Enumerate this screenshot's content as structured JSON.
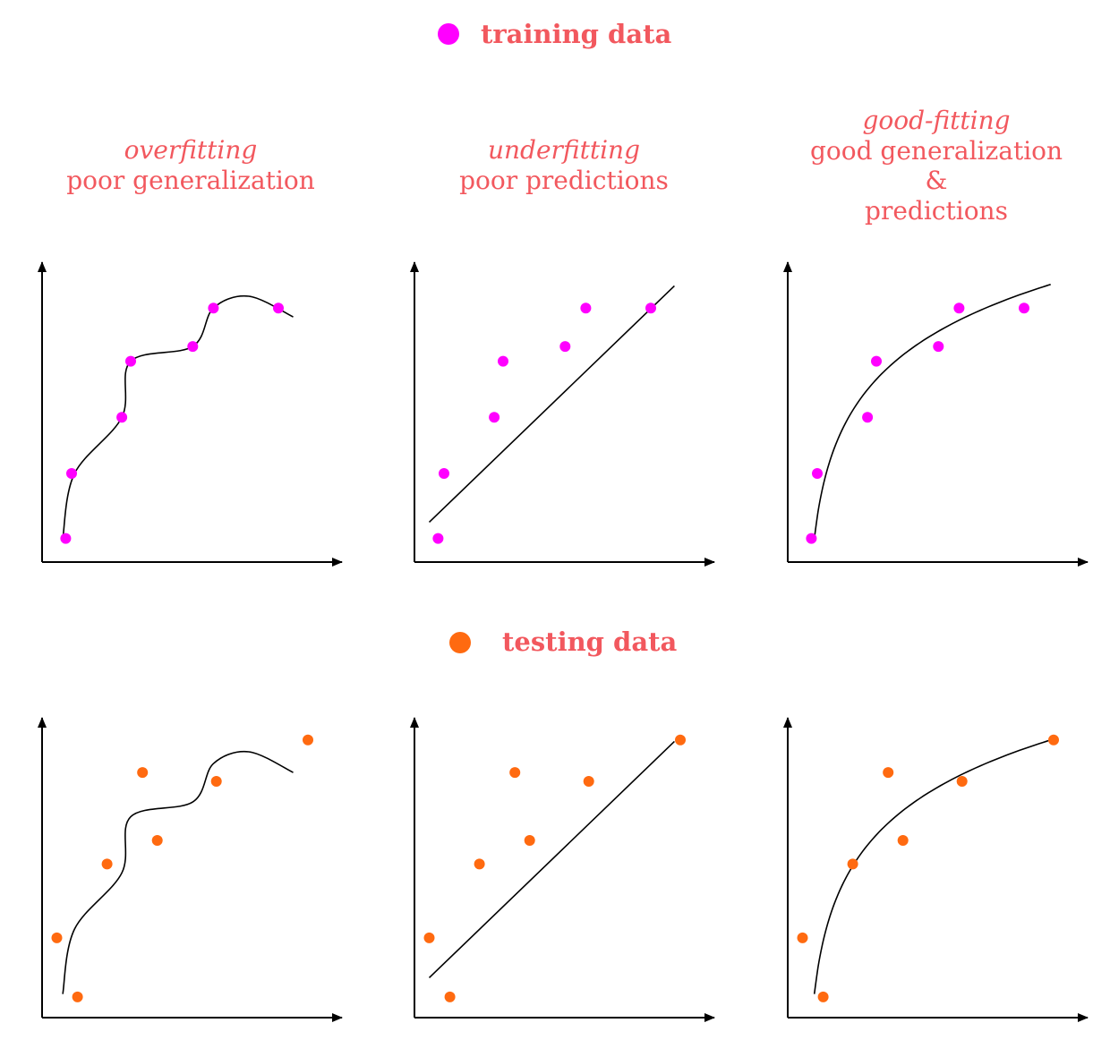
{
  "colors": {
    "text_accent": "#f2585e",
    "training_marker": "#ff00ff",
    "testing_marker": "#ff6a10",
    "curve": "#000000",
    "axis": "#000000"
  },
  "legend": {
    "training_label": "training data",
    "testing_label": "testing data"
  },
  "panels": [
    {
      "id": "overfitting",
      "title_italic": "overfitting",
      "title_lines": [
        "poor generalization"
      ],
      "fit": "wiggly"
    },
    {
      "id": "underfitting",
      "title_italic": "underfitting",
      "title_lines": [
        "poor predictions"
      ],
      "fit": "linear"
    },
    {
      "id": "good-fitting",
      "title_italic": "good-fitting",
      "title_lines": [
        "good generalization",
        "&",
        "predictions"
      ],
      "fit": "logarithmic"
    }
  ],
  "chart_data": {
    "type": "scatter",
    "axis_units": "unlabeled, arbitrary (0 = origin)",
    "training_points": [
      [
        0.08,
        0.08
      ],
      [
        0.1,
        0.3
      ],
      [
        0.27,
        0.49
      ],
      [
        0.3,
        0.68
      ],
      [
        0.51,
        0.73
      ],
      [
        0.58,
        0.86
      ],
      [
        0.8,
        0.86
      ]
    ],
    "testing_points": [
      [
        0.05,
        0.27
      ],
      [
        0.12,
        0.07
      ],
      [
        0.22,
        0.52
      ],
      [
        0.34,
        0.83
      ],
      [
        0.39,
        0.6
      ],
      [
        0.59,
        0.8
      ],
      [
        0.9,
        0.94
      ]
    ]
  }
}
